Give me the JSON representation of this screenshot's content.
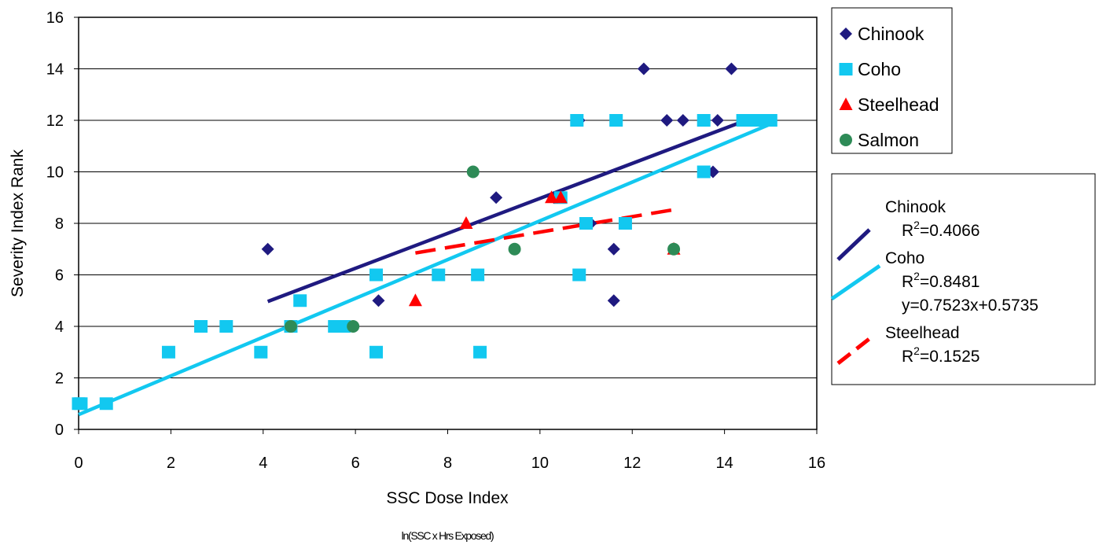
{
  "chart_data": {
    "type": "scatter",
    "xlabel": "SSC Dose Index",
    "xlabel_sub": "ln(SSC x Hrs Exposed)",
    "ylabel": "Severity Index Rank",
    "xlim": [
      0,
      16
    ],
    "ylim": [
      0,
      16
    ],
    "xticks": [
      "0",
      "2",
      "4",
      "6",
      "8",
      "10",
      "12",
      "14",
      "16"
    ],
    "yticks": [
      "0",
      "2",
      "4",
      "6",
      "8",
      "10",
      "12",
      "14",
      "16"
    ],
    "grid": "horizontal",
    "legend_position": "right",
    "series": [
      {
        "name": "Chinook",
        "marker": "diamond",
        "color": "#1f1a80",
        "points": [
          [
            4.1,
            7
          ],
          [
            4.6,
            4
          ],
          [
            6.5,
            5
          ],
          [
            9.05,
            9
          ],
          [
            10.3,
            9
          ],
          [
            10.85,
            12
          ],
          [
            11.1,
            8
          ],
          [
            11.6,
            7
          ],
          [
            11.6,
            5
          ],
          [
            12.25,
            14
          ],
          [
            12.75,
            12
          ],
          [
            13.1,
            12
          ],
          [
            13.75,
            10
          ],
          [
            13.85,
            12
          ],
          [
            14.15,
            14
          ]
        ]
      },
      {
        "name": "Coho",
        "marker": "square",
        "color": "#12c8f0",
        "points": [
          [
            0,
            1
          ],
          [
            0.05,
            1
          ],
          [
            0.6,
            1
          ],
          [
            1.95,
            3
          ],
          [
            2.65,
            4
          ],
          [
            3.2,
            4
          ],
          [
            3.95,
            3
          ],
          [
            4.6,
            4
          ],
          [
            4.8,
            5
          ],
          [
            5.55,
            4
          ],
          [
            5.75,
            4
          ],
          [
            6.45,
            6
          ],
          [
            6.45,
            3
          ],
          [
            7.8,
            6
          ],
          [
            8.65,
            6
          ],
          [
            8.7,
            3
          ],
          [
            10.45,
            9
          ],
          [
            10.8,
            12
          ],
          [
            10.85,
            6
          ],
          [
            11,
            8
          ],
          [
            11.65,
            12
          ],
          [
            11.85,
            8
          ],
          [
            13.55,
            12
          ],
          [
            13.55,
            10
          ],
          [
            14.4,
            12
          ],
          [
            14.6,
            12
          ],
          [
            14.8,
            12
          ],
          [
            15,
            12
          ]
        ]
      },
      {
        "name": "Steelhead",
        "marker": "triangle",
        "color": "#ff0000",
        "points": [
          [
            7.3,
            5
          ],
          [
            8.4,
            8
          ],
          [
            10.25,
            9
          ],
          [
            10.45,
            9
          ],
          [
            12.9,
            7
          ]
        ]
      },
      {
        "name": "Salmon",
        "marker": "circle",
        "color": "#2e8b57",
        "points": [
          [
            4.6,
            4
          ],
          [
            5.95,
            4
          ],
          [
            8.55,
            10
          ],
          [
            9.45,
            7
          ],
          [
            12.9,
            7
          ]
        ]
      }
    ],
    "trendlines": [
      {
        "name": "Chinook",
        "r2_label": "R",
        "r2_value": "=0.4066",
        "equation": "",
        "style": "solid",
        "color": "#1f1a80",
        "slope": 0.6786,
        "intercept": 2.1834,
        "x_range": [
          4.1,
          14.5
        ]
      },
      {
        "name": "Coho",
        "r2_label": "R",
        "r2_value": "=0.8481",
        "equation": "y=0.7523x+0.5735",
        "style": "solid",
        "color": "#12c8f0",
        "slope": 0.7523,
        "intercept": 0.5735,
        "x_range": [
          0,
          15
        ]
      },
      {
        "name": "Steelhead",
        "r2_label": "R",
        "r2_value": "=0.1525",
        "equation": "",
        "style": "dashed",
        "color": "#ff0000",
        "slope": 0.3,
        "intercept": 4.66,
        "x_range": [
          7.3,
          12.9
        ]
      }
    ],
    "superscript": "2"
  }
}
